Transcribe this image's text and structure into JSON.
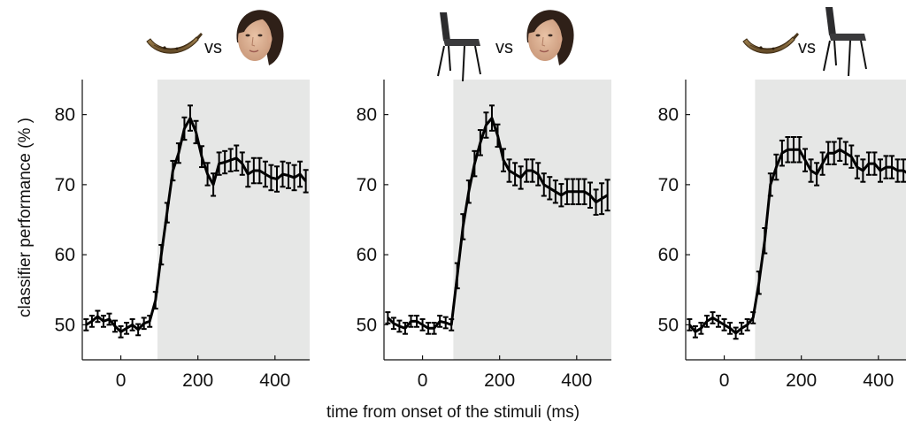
{
  "xlabel": "time from onset of the stimuli (ms)",
  "ylabel": "classifier performance (% )",
  "vs_text": "vs",
  "chart_data": [
    {
      "type": "line",
      "comparison": [
        "banana",
        "face"
      ],
      "xlim": [
        -100,
        490
      ],
      "ylim": [
        45,
        85
      ],
      "xticks": [
        0,
        200,
        400
      ],
      "yticks": [
        50,
        60,
        70,
        80
      ],
      "shade_start": 95,
      "x": [
        -90,
        -75,
        -60,
        -45,
        -30,
        -15,
        0,
        15,
        30,
        45,
        60,
        75,
        90,
        105,
        120,
        135,
        150,
        165,
        180,
        195,
        210,
        225,
        240,
        255,
        270,
        285,
        300,
        315,
        330,
        345,
        360,
        375,
        390,
        405,
        420,
        435,
        450,
        465,
        480
      ],
      "y": [
        50,
        50.5,
        51.2,
        50.5,
        50.8,
        49.8,
        49,
        49.5,
        50,
        49.3,
        50.2,
        50.5,
        53.5,
        60,
        66,
        72,
        74.5,
        78,
        79.5,
        77.5,
        74,
        71.5,
        70,
        73,
        73.2,
        73.5,
        73.8,
        73,
        71.5,
        72,
        72,
        71.5,
        71,
        70.8,
        71.5,
        71.3,
        71,
        71.5,
        70.5
      ],
      "err": [
        0.8,
        0.8,
        0.8,
        0.8,
        0.8,
        0.8,
        0.8,
        0.8,
        0.8,
        0.8,
        0.8,
        0.8,
        1.2,
        1.4,
        1.4,
        1.4,
        1.4,
        1.6,
        1.8,
        1.6,
        1.5,
        1.6,
        1.6,
        1.6,
        1.6,
        1.6,
        1.8,
        1.6,
        1.8,
        1.8,
        1.8,
        1.8,
        1.8,
        1.8,
        1.8,
        1.8,
        1.8,
        1.8,
        1.6
      ]
    },
    {
      "type": "line",
      "comparison": [
        "chair",
        "face"
      ],
      "xlim": [
        -100,
        490
      ],
      "ylim": [
        45,
        85
      ],
      "xticks": [
        0,
        200,
        400
      ],
      "yticks": [
        50,
        60,
        70,
        80
      ],
      "shade_start": 80,
      "x": [
        -90,
        -75,
        -60,
        -45,
        -30,
        -15,
        0,
        15,
        30,
        45,
        60,
        75,
        90,
        105,
        120,
        135,
        150,
        165,
        180,
        195,
        210,
        225,
        240,
        255,
        270,
        285,
        300,
        315,
        330,
        345,
        360,
        375,
        390,
        405,
        420,
        435,
        450,
        465,
        480
      ],
      "y": [
        51,
        50.2,
        49.8,
        49.5,
        50.5,
        50.5,
        50,
        49.5,
        49.5,
        50.5,
        50.3,
        50,
        57,
        64,
        69,
        73,
        76,
        78.5,
        79.5,
        77,
        73.5,
        72,
        71.5,
        71,
        72,
        72,
        71.5,
        70,
        69.5,
        69,
        68.5,
        69,
        69,
        69,
        69,
        68.5,
        67.5,
        68,
        68.5
      ],
      "err": [
        0.8,
        0.8,
        0.8,
        0.8,
        0.8,
        0.8,
        0.8,
        0.8,
        0.8,
        0.8,
        0.8,
        0.8,
        1.8,
        1.8,
        1.6,
        1.8,
        1.8,
        1.8,
        1.8,
        1.6,
        1.6,
        1.6,
        1.6,
        1.6,
        1.6,
        1.6,
        1.6,
        1.6,
        1.6,
        1.6,
        1.6,
        1.8,
        1.8,
        1.8,
        1.8,
        1.8,
        1.8,
        2.2,
        2.2
      ]
    },
    {
      "type": "line",
      "comparison": [
        "banana",
        "chair"
      ],
      "xlim": [
        -100,
        490
      ],
      "ylim": [
        45,
        85
      ],
      "xticks": [
        0,
        200,
        400
      ],
      "yticks": [
        50,
        60,
        70,
        80
      ],
      "shade_start": 80,
      "x": [
        -90,
        -75,
        -60,
        -45,
        -30,
        -15,
        0,
        15,
        30,
        45,
        60,
        75,
        90,
        105,
        120,
        135,
        150,
        165,
        180,
        195,
        210,
        225,
        240,
        255,
        270,
        285,
        300,
        315,
        330,
        345,
        360,
        375,
        390,
        405,
        420,
        435,
        450,
        465,
        480
      ],
      "y": [
        50,
        49,
        49.5,
        50.5,
        51,
        50.5,
        50,
        49.5,
        48.8,
        49.5,
        50,
        51,
        56,
        62,
        70,
        72.5,
        74.5,
        75,
        75,
        75,
        73.5,
        72,
        71.5,
        73,
        74.5,
        74.5,
        75,
        74.5,
        74,
        72.5,
        72,
        73,
        73,
        72,
        72.5,
        72.5,
        72,
        72,
        71.5
      ],
      "err": [
        0.8,
        0.8,
        0.8,
        0.8,
        0.8,
        0.8,
        0.8,
        0.8,
        0.8,
        0.8,
        0.8,
        0.8,
        1.6,
        1.8,
        1.6,
        1.8,
        1.8,
        1.8,
        1.8,
        1.8,
        1.6,
        1.6,
        1.6,
        1.6,
        1.6,
        1.6,
        1.6,
        1.6,
        1.6,
        1.6,
        1.6,
        1.6,
        1.6,
        1.6,
        1.6,
        1.6,
        1.6,
        1.6,
        1.6
      ]
    }
  ]
}
